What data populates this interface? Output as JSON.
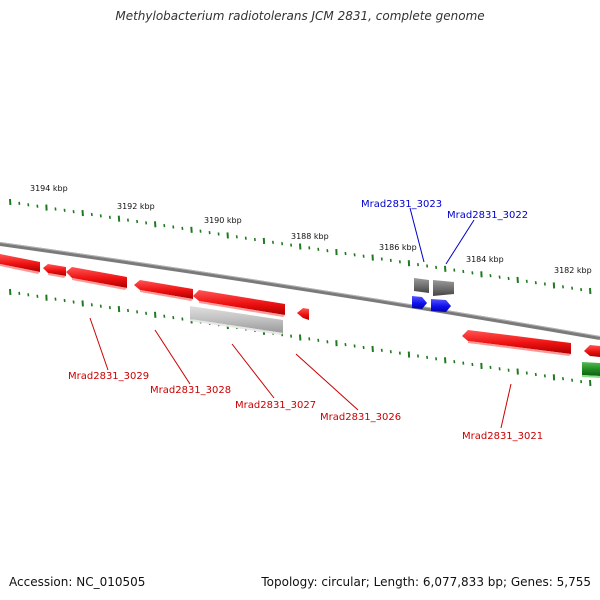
{
  "title": "Methylobacterium radiotolerans JCM 2831, complete genome",
  "footer": {
    "accession": "Accession: NC_010505",
    "topology": "Topology: circular; Length: 6,077,833 bp; Genes: 5,755"
  },
  "colors": {
    "backbone": "#8a8a8a",
    "tick": "#1f7a1f",
    "gene_red": "#ee1111",
    "gene_gray": "#6e6e6e",
    "gene_lightgray": "#bdbdbd",
    "gene_blue": "#1111ee",
    "gene_green": "#1f8a1f",
    "label_red": "#cc0000",
    "label_blue": "#0000cc"
  },
  "scale": {
    "labels": [
      "3194 kbp",
      "3192 kbp",
      "3190 kbp",
      "3188 kbp",
      "3186 kbp",
      "3184 kbp",
      "3182 kbp"
    ]
  },
  "gene_labels": [
    {
      "text": "Mrad2831_3023",
      "color": "blue"
    },
    {
      "text": "Mrad2831_3022",
      "color": "blue"
    },
    {
      "text": "Mrad2831_3029",
      "color": "red"
    },
    {
      "text": "Mrad2831_3028",
      "color": "red"
    },
    {
      "text": "Mrad2831_3027",
      "color": "red"
    },
    {
      "text": "Mrad2831_3026",
      "color": "red"
    },
    {
      "text": "Mrad2831_3021",
      "color": "red"
    }
  ]
}
